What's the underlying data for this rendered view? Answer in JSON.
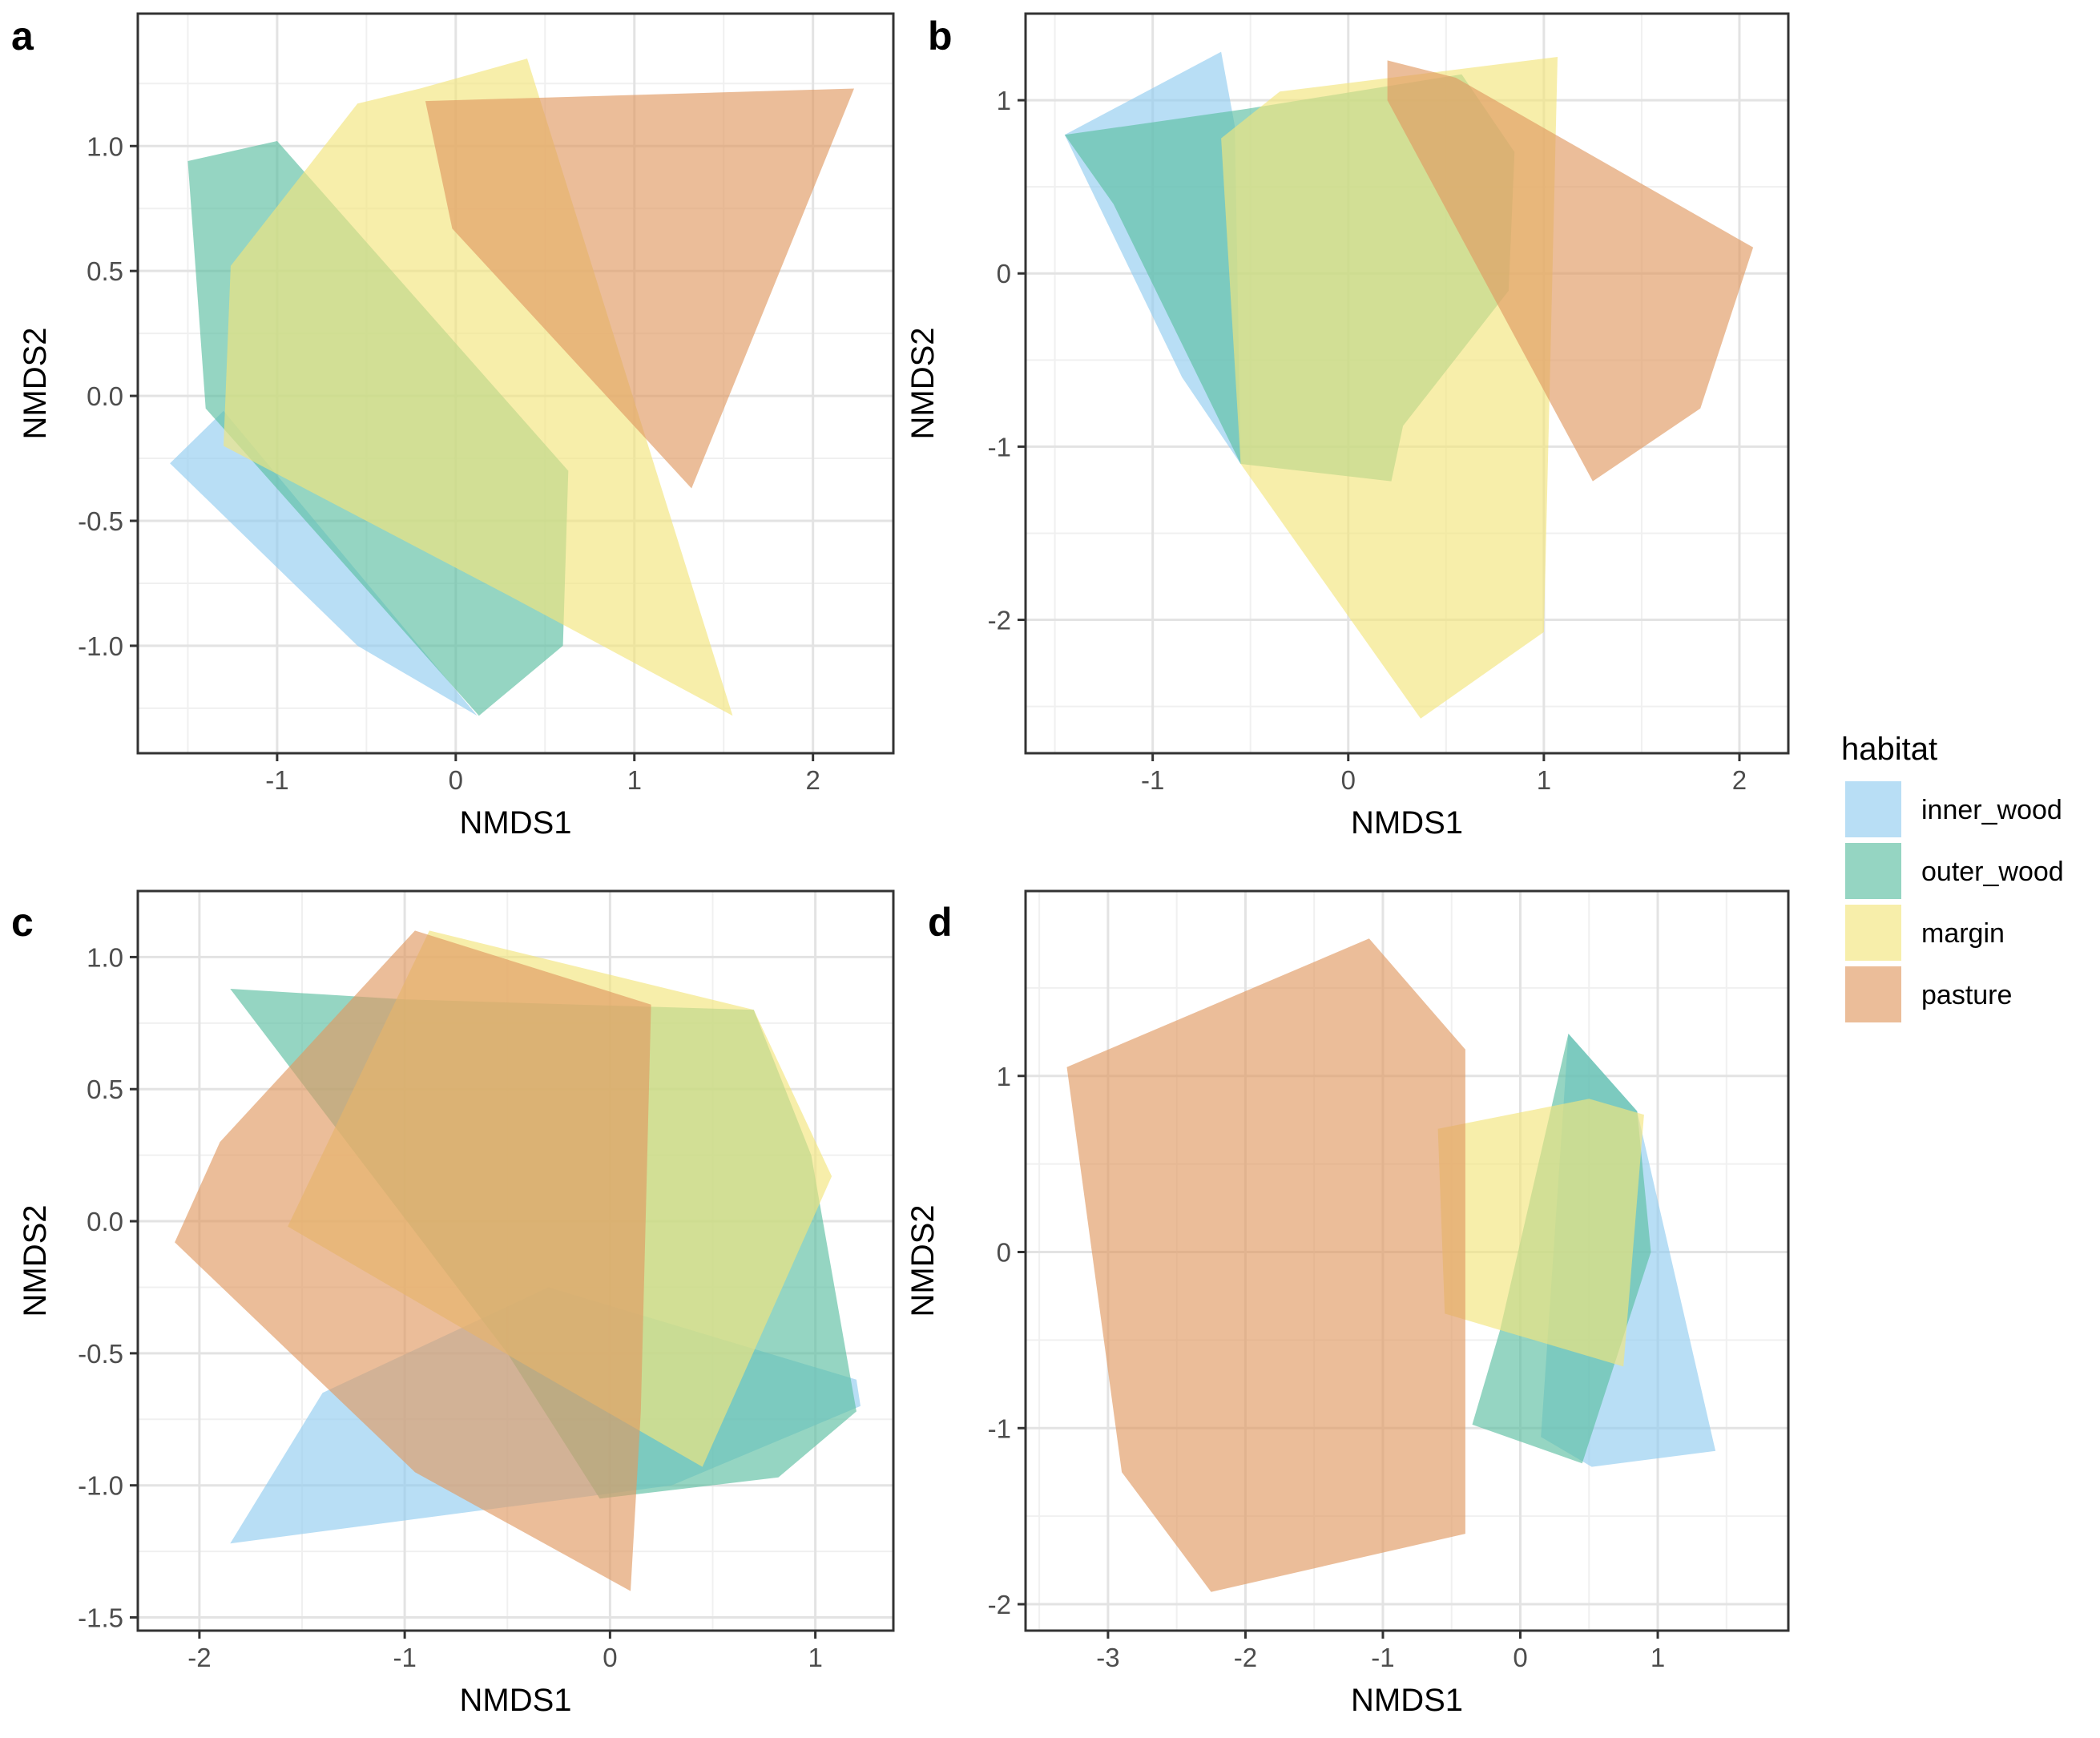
{
  "legend": {
    "title": "habitat",
    "entries": [
      {
        "label": "inner_wood",
        "color": "#92cdf0"
      },
      {
        "label": "outer_wood",
        "color": "#5cbea2"
      },
      {
        "label": "margin",
        "color": "#f2e57c"
      },
      {
        "label": "pasture",
        "color": "#e19a62"
      }
    ]
  },
  "chart_data": [
    {
      "panel": "a",
      "type": "polygon",
      "xlabel": "NMDS1",
      "ylabel": "NMDS2",
      "xlim": [
        -1.78,
        2.45
      ],
      "ylim": [
        -1.43,
        1.53
      ],
      "xticks": [
        -1,
        0,
        1,
        2
      ],
      "xtick_labels": [
        "-1",
        "0",
        "1",
        "2"
      ],
      "yticks": [
        -1.0,
        -0.5,
        0.0,
        0.5,
        1.0
      ],
      "ytick_labels": [
        "-1.0",
        "-0.5",
        "0.0",
        "0.5",
        "1.0"
      ],
      "series": [
        {
          "name": "inner_wood",
          "points": [
            [
              -1.6,
              -0.27
            ],
            [
              -1.3,
              -0.06
            ],
            [
              0.12,
              -1.28
            ],
            [
              -0.55,
              -1.0
            ]
          ]
        },
        {
          "name": "outer_wood",
          "points": [
            [
              -1.5,
              0.94
            ],
            [
              -1.0,
              1.02
            ],
            [
              0.63,
              -0.3
            ],
            [
              0.6,
              -1.0
            ],
            [
              0.13,
              -1.28
            ],
            [
              -1.4,
              -0.05
            ]
          ]
        },
        {
          "name": "margin",
          "points": [
            [
              -1.26,
              0.52
            ],
            [
              -0.55,
              1.17
            ],
            [
              -0.2,
              1.23
            ],
            [
              0.4,
              1.35
            ],
            [
              1.55,
              -1.28
            ],
            [
              0.3,
              -0.8
            ],
            [
              -1.3,
              -0.2
            ]
          ]
        },
        {
          "name": "pasture",
          "points": [
            [
              -0.17,
              1.18
            ],
            [
              2.23,
              1.23
            ],
            [
              1.32,
              -0.37
            ],
            [
              -0.02,
              0.67
            ]
          ]
        }
      ]
    },
    {
      "panel": "b",
      "type": "polygon",
      "xlabel": "NMDS1",
      "ylabel": "NMDS2",
      "xlim": [
        -1.65,
        2.25
      ],
      "ylim": [
        -2.77,
        1.5
      ],
      "xticks": [
        -1,
        0,
        1,
        2
      ],
      "xtick_labels": [
        "-1",
        "0",
        "1",
        "2"
      ],
      "yticks": [
        -2,
        -1,
        0,
        1
      ],
      "ytick_labels": [
        "-2",
        "-1",
        "0",
        "1"
      ],
      "series": [
        {
          "name": "inner_wood",
          "points": [
            [
              -1.45,
              0.8
            ],
            [
              -0.65,
              1.28
            ],
            [
              -0.58,
              0.85
            ],
            [
              -0.55,
              -1.1
            ],
            [
              -0.85,
              -0.6
            ]
          ]
        },
        {
          "name": "outer_wood",
          "points": [
            [
              -1.45,
              0.8
            ],
            [
              -0.52,
              0.95
            ],
            [
              0.58,
              1.15
            ],
            [
              0.85,
              0.7
            ],
            [
              0.82,
              -0.1
            ],
            [
              0.28,
              -0.88
            ],
            [
              0.22,
              -1.2
            ],
            [
              -0.55,
              -1.1
            ],
            [
              -1.2,
              0.4
            ]
          ]
        },
        {
          "name": "margin",
          "points": [
            [
              -0.65,
              0.78
            ],
            [
              -0.35,
              1.05
            ],
            [
              1.07,
              1.25
            ],
            [
              1.0,
              -2.07
            ],
            [
              0.37,
              -2.57
            ],
            [
              -0.55,
              -1.1
            ]
          ]
        },
        {
          "name": "pasture",
          "points": [
            [
              0.2,
              1.23
            ],
            [
              0.55,
              1.13
            ],
            [
              2.07,
              0.15
            ],
            [
              1.8,
              -0.78
            ],
            [
              1.25,
              -1.2
            ],
            [
              0.2,
              1.0
            ]
          ]
        }
      ]
    },
    {
      "panel": "c",
      "type": "polygon",
      "xlabel": "NMDS1",
      "ylabel": "NMDS2",
      "xlim": [
        -2.3,
        1.38
      ],
      "ylim": [
        -1.55,
        1.25
      ],
      "xticks": [
        -2,
        -1,
        0,
        1
      ],
      "xtick_labels": [
        "-2",
        "-1",
        "0",
        "1"
      ],
      "yticks": [
        -1.5,
        -1.0,
        -0.5,
        0.0,
        0.5,
        1.0
      ],
      "ytick_labels": [
        "-1.5",
        "-1.0",
        "-0.5",
        "0.0",
        "0.5",
        "1.0"
      ],
      "series": [
        {
          "name": "inner_wood",
          "points": [
            [
              -1.85,
              -1.22
            ],
            [
              -1.4,
              -0.65
            ],
            [
              -0.3,
              -0.25
            ],
            [
              1.2,
              -0.6
            ],
            [
              1.22,
              -0.7
            ],
            [
              0.3,
              -1.0
            ]
          ]
        },
        {
          "name": "outer_wood",
          "points": [
            [
              -1.85,
              0.88
            ],
            [
              -1.0,
              0.84
            ],
            [
              0.7,
              0.8
            ],
            [
              0.98,
              0.25
            ],
            [
              1.2,
              -0.72
            ],
            [
              0.82,
              -0.97
            ],
            [
              -0.05,
              -1.05
            ],
            [
              -0.5,
              -0.5
            ]
          ]
        },
        {
          "name": "margin",
          "points": [
            [
              -1.57,
              -0.02
            ],
            [
              -0.88,
              1.1
            ],
            [
              0.7,
              0.8
            ],
            [
              1.08,
              0.17
            ],
            [
              0.45,
              -0.93
            ],
            [
              -0.4,
              -0.55
            ]
          ]
        },
        {
          "name": "pasture",
          "points": [
            [
              -2.12,
              -0.08
            ],
            [
              -1.9,
              0.3
            ],
            [
              -0.95,
              1.1
            ],
            [
              0.2,
              0.82
            ],
            [
              0.15,
              -0.72
            ],
            [
              0.1,
              -1.4
            ],
            [
              -0.95,
              -0.95
            ]
          ]
        }
      ]
    },
    {
      "panel": "d",
      "type": "polygon",
      "xlabel": "NMDS1",
      "ylabel": "NMDS2",
      "xlim": [
        -3.6,
        1.95
      ],
      "ylim": [
        -2.15,
        2.05
      ],
      "xticks": [
        -3,
        -2,
        -1,
        0,
        1
      ],
      "xtick_labels": [
        "-3",
        "-2",
        "-1",
        "0",
        "1"
      ],
      "yticks": [
        -2,
        -1,
        0,
        1
      ],
      "ytick_labels": [
        "-2",
        "-1",
        "0",
        "1"
      ],
      "series": [
        {
          "name": "inner_wood",
          "points": [
            [
              0.35,
              1.24
            ],
            [
              0.85,
              0.8
            ],
            [
              1.42,
              -1.13
            ],
            [
              0.52,
              -1.22
            ],
            [
              0.15,
              -1.05
            ]
          ]
        },
        {
          "name": "outer_wood",
          "points": [
            [
              0.35,
              1.24
            ],
            [
              0.85,
              0.8
            ],
            [
              0.95,
              0.0
            ],
            [
              0.45,
              -1.2
            ],
            [
              -0.35,
              -0.98
            ],
            [
              -0.15,
              -0.45
            ]
          ]
        },
        {
          "name": "margin",
          "points": [
            [
              -0.6,
              0.7
            ],
            [
              0.5,
              0.87
            ],
            [
              0.9,
              0.78
            ],
            [
              0.75,
              -0.65
            ],
            [
              -0.55,
              -0.35
            ]
          ]
        },
        {
          "name": "pasture",
          "points": [
            [
              -3.3,
              1.05
            ],
            [
              -1.1,
              1.78
            ],
            [
              -0.4,
              1.15
            ],
            [
              -0.4,
              -1.6
            ],
            [
              -2.25,
              -1.93
            ],
            [
              -2.9,
              -1.25
            ]
          ]
        }
      ]
    }
  ]
}
